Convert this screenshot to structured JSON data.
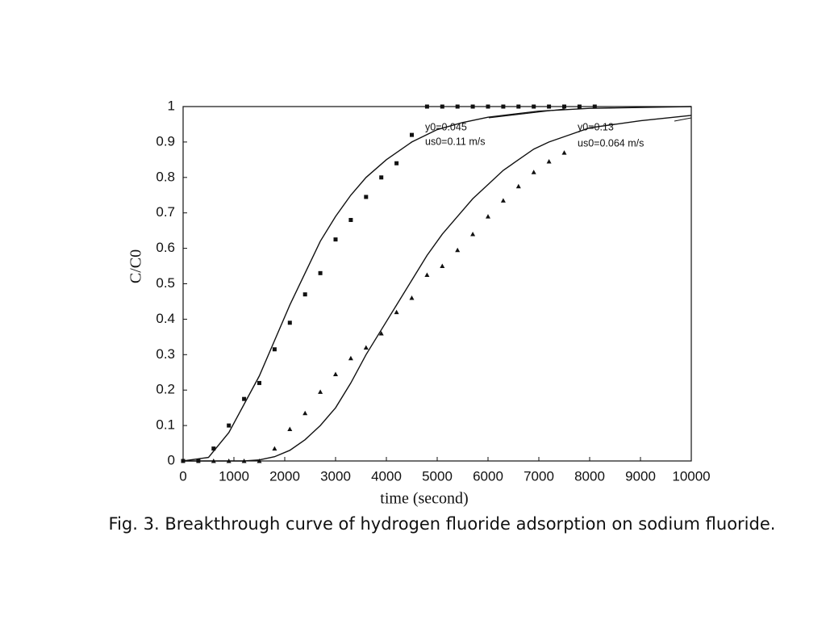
{
  "chart_data": {
    "type": "scatter",
    "caption": "Fig. 3. Breakthrough curve of hydrogen fluoride adsorption on sodium fluoride.",
    "xlabel": "time (second)",
    "ylabel": "C/C0",
    "xlim": [
      0,
      10000
    ],
    "ylim": [
      0,
      1
    ],
    "xticks": [
      0,
      1000,
      2000,
      3000,
      4000,
      5000,
      6000,
      7000,
      8000,
      9000,
      10000
    ],
    "yticks": [
      0,
      0.1,
      0.2,
      0.3,
      0.4,
      0.5,
      0.6,
      0.7,
      0.8,
      0.9,
      1
    ],
    "annotations": [
      "y0=0.045",
      "us0=0.11  m/s",
      "y0=0.13",
      "us0=0.064 m/s"
    ],
    "series": [
      {
        "kind": "line",
        "color": "#111111",
        "x": [
          0,
          500,
          900,
          1200,
          1500,
          1800,
          2100,
          2400,
          2700,
          3000,
          3300,
          3600,
          4000,
          4500,
          5000,
          5500,
          6000,
          7000,
          8000,
          10000
        ],
        "values": [
          0,
          0.01,
          0.08,
          0.16,
          0.24,
          0.34,
          0.44,
          0.53,
          0.62,
          0.69,
          0.75,
          0.8,
          0.85,
          0.9,
          0.935,
          0.955,
          0.97,
          0.987,
          0.995,
          1
        ]
      },
      {
        "kind": "line",
        "color": "#111111",
        "x": [
          0,
          1200,
          1500,
          1800,
          2100,
          2400,
          2700,
          3000,
          3300,
          3600,
          3900,
          4200,
          4500,
          4800,
          5100,
          5400,
          5700,
          6000,
          6300,
          6600,
          6900,
          7200,
          7600,
          8000,
          9000,
          10000
        ],
        "values": [
          0,
          0,
          0.003,
          0.012,
          0.03,
          0.06,
          0.1,
          0.15,
          0.22,
          0.3,
          0.37,
          0.44,
          0.51,
          0.58,
          0.64,
          0.69,
          0.74,
          0.78,
          0.82,
          0.85,
          0.88,
          0.9,
          0.92,
          0.94,
          0.96,
          0.975
        ]
      },
      {
        "kind": "marker",
        "marker": "square",
        "color": "#111111",
        "x": [
          0,
          300,
          600,
          900,
          1200,
          1500,
          1800,
          2100,
          2400,
          2700,
          3000,
          3300,
          3600,
          3900,
          4200,
          4500,
          4800,
          5100,
          5400,
          5700,
          6000,
          6300,
          6600,
          6900,
          7200,
          7500,
          7800,
          8100
        ],
        "values": [
          0,
          0,
          0.035,
          0.1,
          0.175,
          0.22,
          0.315,
          0.39,
          0.47,
          0.53,
          0.625,
          0.68,
          0.745,
          0.8,
          0.84,
          0.92,
          1,
          1,
          1,
          1,
          1,
          1,
          1,
          1,
          1,
          1,
          1,
          1
        ]
      },
      {
        "kind": "marker",
        "marker": "triangle",
        "color": "#111111",
        "x": [
          600,
          900,
          1200,
          1500,
          1800,
          2100,
          2400,
          2700,
          3000,
          3300,
          3600,
          3900,
          4200,
          4500,
          4800,
          5100,
          5400,
          5700,
          6000,
          6300,
          6600,
          6900,
          7200,
          7500
        ],
        "values": [
          0,
          0,
          0,
          0,
          0.035,
          0.09,
          0.135,
          0.195,
          0.245,
          0.29,
          0.32,
          0.36,
          0.42,
          0.46,
          0.525,
          0.55,
          0.595,
          0.64,
          0.69,
          0.735,
          0.775,
          0.815,
          0.845,
          0.87
        ]
      }
    ]
  }
}
